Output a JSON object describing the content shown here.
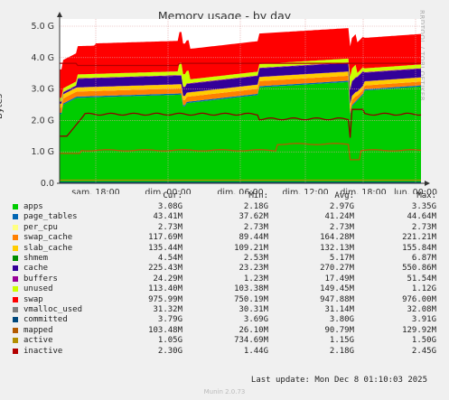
{
  "title": "Memory usage - by day",
  "side_label": "RRDTOOL / TOBI OETIKER",
  "version": "Munin 2.0.73",
  "last_update": "Last update: Mon Dec  8 01:10:03 2025",
  "chart_data": {
    "type": "area",
    "title": "Memory usage - by day",
    "ylabel": "Bytes",
    "ylim": [
      0,
      5.0
    ],
    "y_unit": "G",
    "y_ticks": [
      "0.0",
      "1.0 G",
      "2.0 G",
      "3.0 G",
      "4.0 G",
      "5.0 G"
    ],
    "x_ticks": [
      "sam. 18:00",
      "dim. 00:00",
      "dim. 06:00",
      "dim. 12:00",
      "dim. 18:00",
      "lun. 00:00"
    ],
    "grid": true,
    "legend_columns": [
      "Cur:",
      "Min:",
      "Avg:",
      "Max:"
    ],
    "series": [
      {
        "name": "apps",
        "color": "#00cc00",
        "cur": "3.08G",
        "min": "2.18G",
        "avg": "2.97G",
        "max": "3.35G"
      },
      {
        "name": "page_tables",
        "color": "#0066b3",
        "cur": "43.41M",
        "min": "37.62M",
        "avg": "41.24M",
        "max": "44.64M"
      },
      {
        "name": "per_cpu",
        "color": "#ff8000",
        "cur": "2.73M",
        "min": "2.73M",
        "avg": "2.73M",
        "max": "2.73M"
      },
      {
        "name": "swap_cache",
        "color": "#ffcc00",
        "cur": "117.69M",
        "min": "89.44M",
        "avg": "164.28M",
        "max": "221.21M"
      },
      {
        "name": "slab_cache",
        "color": "#330099",
        "cur": "135.44M",
        "min": "109.21M",
        "avg": "132.13M",
        "max": "155.84M"
      },
      {
        "name": "shmem",
        "color": "#990099",
        "cur": "4.54M",
        "min": "2.53M",
        "avg": "5.17M",
        "max": "6.87M"
      },
      {
        "name": "cache",
        "color": "#ccff00",
        "cur": "225.43M",
        "min": "23.23M",
        "avg": "270.27M",
        "max": "550.86M"
      },
      {
        "name": "buffers",
        "color": "#ff0000",
        "cur": "24.29M",
        "min": "1.23M",
        "avg": "17.49M",
        "max": "51.54M"
      },
      {
        "name": "unused",
        "color": "#808080",
        "cur": "113.40M",
        "min": "103.38M",
        "avg": "149.45M",
        "max": "1.12G"
      },
      {
        "name": "swap",
        "color": "#008f00",
        "cur": "975.99M",
        "min": "750.19M",
        "avg": "947.88M",
        "max": "976.00M"
      },
      {
        "name": "vmalloc_used",
        "color": "#00487d",
        "cur": "31.32M",
        "min": "30.31M",
        "avg": "31.14M",
        "max": "32.08M"
      },
      {
        "name": "committed",
        "color": "#b35a00",
        "cur": "3.79G",
        "min": "3.69G",
        "avg": "3.80G",
        "max": "3.91G"
      },
      {
        "name": "mapped",
        "color": "#b38f00",
        "cur": "103.48M",
        "min": "26.10M",
        "avg": "90.79M",
        "max": "129.92M"
      },
      {
        "name": "active",
        "color": "#6b006b",
        "cur": "1.05G",
        "min": "734.69M",
        "avg": "1.15G",
        "max": "1.50G"
      },
      {
        "name": "inactive",
        "color": "#8fb300",
        "cur": "2.30G",
        "min": "1.44G",
        "avg": "2.18G",
        "max": "2.45G"
      }
    ],
    "legend_swatch_colors": [
      "#00cc00",
      "#0066b3",
      "#ff8000",
      "#ffcc00",
      "#330099",
      "#990099",
      "#ccff00",
      "#ff0000",
      "#808080",
      "#008f00",
      "#00487d",
      "#b35a00",
      "#b38f00",
      "#6b006b",
      "#8fb300"
    ],
    "legend_swatch_actual": [
      "#00cc00",
      "#0066b3",
      "#ffff80",
      "#ff8000",
      "#ffcc00",
      "#008f00",
      "#330099",
      "#990099",
      "#ccff00",
      "#ff0000",
      "#808080",
      "#00487d",
      "#b35a00",
      "#b38f00",
      "#b30000"
    ]
  }
}
